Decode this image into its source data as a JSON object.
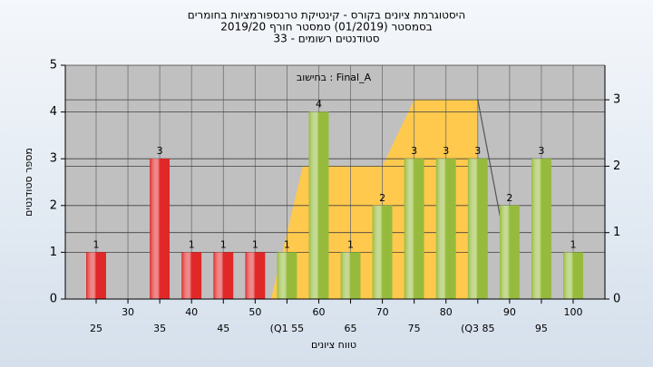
{
  "chart_data": {
    "type": "bar",
    "title": [
      "היסטוגרמת ציונים בקורס - קינטיקת טרנספורמציות בחומרים",
      "בסמסטר  (01/2019)  סמסטר חורף 2019/20",
      "סטודנטים רשומים - 33"
    ],
    "annotation": "Final_A : בחישוב",
    "y_label": "מספר סטודנטים",
    "x_label": "טווח ציונים",
    "categories": [
      "25",
      "30",
      "35",
      "40",
      "45",
      "50",
      "(Q1 55",
      "60",
      "65",
      "70",
      "75",
      "80",
      "(Q3 85",
      "90",
      "95",
      "100"
    ],
    "x_positions": [
      25,
      30,
      35,
      40,
      45,
      50,
      55,
      60,
      65,
      70,
      75,
      80,
      85,
      90,
      95,
      100
    ],
    "values": [
      1,
      null,
      3,
      1,
      1,
      1,
      1,
      4,
      1,
      2,
      3,
      3,
      3,
      2,
      3,
      1
    ],
    "colors": [
      "#e02828",
      "#e02828",
      "#e02828",
      "#e02828",
      "#e02828",
      "#e02828",
      "#96bb3c",
      "#96bb3c",
      "#96bb3c",
      "#96bb3c",
      "#96bb3c",
      "#96bb3c",
      "#96bb3c",
      "#96bb3c",
      "#96bb3c",
      "#96bb3c"
    ],
    "ylim": [
      0,
      5
    ],
    "yticks": [
      0,
      1,
      2,
      3,
      4,
      5
    ],
    "y2lim": [
      0,
      3.52
    ],
    "y2ticks": [
      0,
      1,
      2,
      3
    ],
    "grid": true,
    "series": [
      {
        "type": "area",
        "axis": "y2",
        "color": "#ffc94d",
        "x": [
          52.5,
          55,
          57.5,
          70,
          75,
          85,
          85
        ],
        "values": [
          0,
          1,
          2,
          2,
          3,
          3,
          0
        ]
      },
      {
        "type": "line",
        "axis": "y2",
        "color": "#555555",
        "x": [
          85,
          89
        ],
        "values": [
          3,
          1
        ]
      }
    ]
  }
}
